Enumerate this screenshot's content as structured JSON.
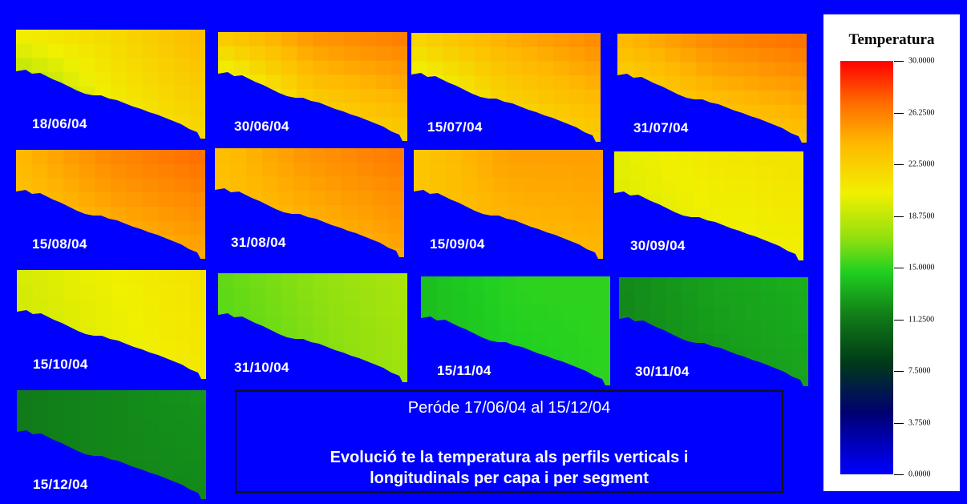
{
  "chart_data": {
    "type": "heatmap",
    "panels": [
      {
        "date": "18/06/04",
        "surface": [
          [
            0,
            21
          ],
          [
            0.5,
            22
          ],
          [
            1,
            24
          ]
        ],
        "bottom": [
          [
            0,
            14
          ],
          [
            0.5,
            20
          ],
          [
            1,
            22
          ]
        ]
      },
      {
        "date": "30/06/04",
        "surface": [
          [
            0,
            23
          ],
          [
            0.5,
            25.5
          ],
          [
            1,
            26.5
          ]
        ],
        "bottom": [
          [
            0,
            15
          ],
          [
            0.5,
            21
          ],
          [
            1,
            22.5
          ]
        ]
      },
      {
        "date": "15/07/04",
        "surface": [
          [
            0,
            22.5
          ],
          [
            0.5,
            24.5
          ],
          [
            1,
            26
          ]
        ],
        "bottom": [
          [
            0,
            16
          ],
          [
            0.5,
            21
          ],
          [
            1,
            22.5
          ]
        ]
      },
      {
        "date": "31/07/04",
        "surface": [
          [
            0,
            24
          ],
          [
            0.5,
            26
          ],
          [
            1,
            27
          ]
        ],
        "bottom": [
          [
            0,
            20
          ],
          [
            0.5,
            22
          ],
          [
            1,
            23
          ]
        ]
      },
      {
        "date": "15/08/04",
        "surface": [
          [
            0,
            24
          ],
          [
            0.5,
            26
          ],
          [
            1,
            27
          ]
        ],
        "bottom": [
          [
            0,
            22.5
          ],
          [
            0.5,
            23.5
          ],
          [
            1,
            24.5
          ]
        ]
      },
      {
        "date": "31/08/04",
        "surface": [
          [
            0,
            23.5
          ],
          [
            0.5,
            25.5
          ],
          [
            1,
            26.5
          ]
        ],
        "bottom": [
          [
            0,
            23
          ],
          [
            0.5,
            23.5
          ],
          [
            1,
            24.5
          ]
        ]
      },
      {
        "date": "15/09/04",
        "surface": [
          [
            0,
            23
          ],
          [
            0.5,
            25
          ],
          [
            1,
            25
          ]
        ],
        "bottom": [
          [
            0,
            23
          ],
          [
            0.5,
            23.5
          ],
          [
            1,
            24
          ]
        ]
      },
      {
        "date": "30/09/04",
        "surface": [
          [
            0,
            20
          ],
          [
            0.5,
            21
          ],
          [
            1,
            21.5
          ]
        ],
        "bottom": [
          [
            0,
            19.5
          ],
          [
            0.5,
            20
          ],
          [
            1,
            20.5
          ]
        ]
      },
      {
        "date": "15/10/04",
        "surface": [
          [
            0,
            19.5
          ],
          [
            0.5,
            20.5
          ],
          [
            1,
            21.5
          ]
        ],
        "bottom": [
          [
            0,
            19
          ],
          [
            0.5,
            20
          ],
          [
            1,
            21
          ]
        ]
      },
      {
        "date": "31/10/04",
        "surface": [
          [
            0,
            16
          ],
          [
            0.5,
            17
          ],
          [
            1,
            18
          ]
        ],
        "bottom": [
          [
            0,
            15.5
          ],
          [
            0.5,
            16.5
          ],
          [
            1,
            17.5
          ]
        ]
      },
      {
        "date": "15/11/04",
        "surface": [
          [
            0,
            14
          ],
          [
            0.5,
            15
          ],
          [
            1,
            15
          ]
        ],
        "bottom": [
          [
            0,
            14
          ],
          [
            0.5,
            14.5
          ],
          [
            1,
            15
          ]
        ]
      },
      {
        "date": "30/11/04",
        "surface": [
          [
            0,
            12
          ],
          [
            0.5,
            13
          ],
          [
            1,
            13.5
          ]
        ],
        "bottom": [
          [
            0,
            12
          ],
          [
            0.5,
            12.5
          ],
          [
            1,
            13
          ]
        ]
      },
      {
        "date": "15/12/04",
        "surface": [
          [
            0,
            11.5
          ],
          [
            0.5,
            12
          ],
          [
            1,
            12.5
          ]
        ],
        "bottom": [
          [
            0,
            11.5
          ],
          [
            0.5,
            12
          ],
          [
            1,
            12
          ]
        ]
      }
    ],
    "colorbar": {
      "title": "Temperatura",
      "ticks": [
        "30.0000",
        "26.2500",
        "22.5000",
        "18.7500",
        "15.0000",
        "11.2500",
        "7.5000",
        "3.7500",
        "0.0000"
      ],
      "range": [
        0,
        30
      ]
    },
    "caption": {
      "period": "Peróde 17/06/04 al 15/12/04",
      "line1": "Evolució te la temperatura als perfils verticals i",
      "line2": "longitudinals per capa i per segment"
    }
  }
}
